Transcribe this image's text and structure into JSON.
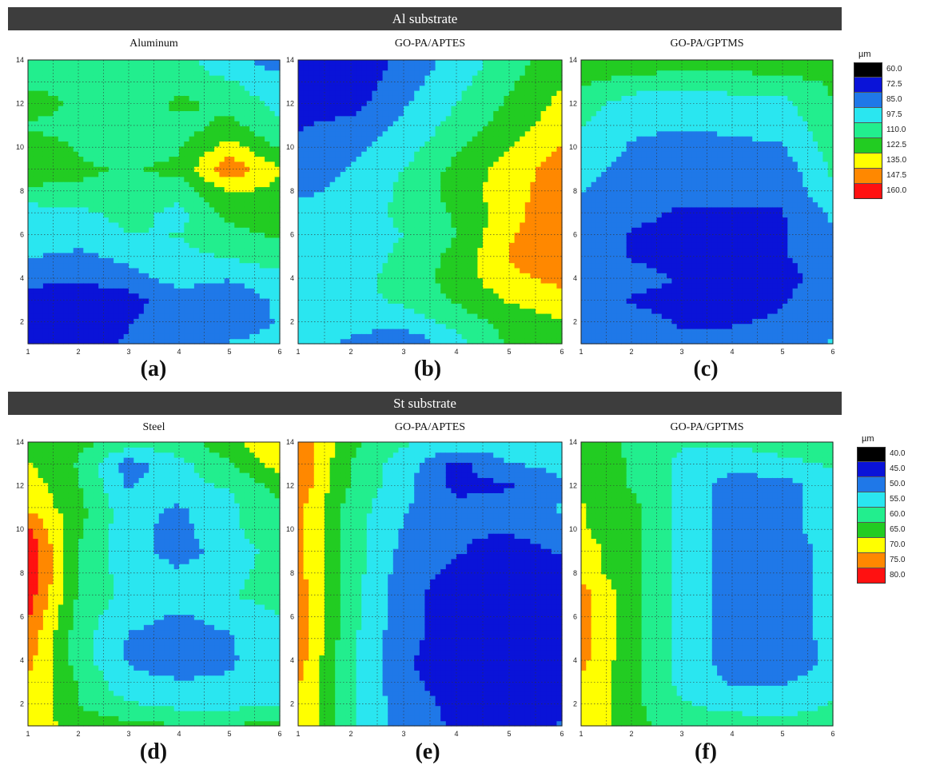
{
  "figure": {
    "banners": [
      "Al substrate",
      "St substrate"
    ],
    "legends": [
      {
        "unit": "µm",
        "levels": [
          "60.0",
          "72.5",
          "85.0",
          "97.5",
          "110.0",
          "122.5",
          "135.0",
          "147.5",
          "160.0"
        ],
        "colors": [
          "#000000",
          "#0a13d8",
          "#1f78e8",
          "#2ae6f0",
          "#22ee8e",
          "#22cc22",
          "#ffff00",
          "#ff8800",
          "#ff1111"
        ]
      },
      {
        "unit": "µm",
        "levels": [
          "40.0",
          "45.0",
          "50.0",
          "55.0",
          "60.0",
          "65.0",
          "70.0",
          "75.0",
          "80.0"
        ],
        "colors": [
          "#000000",
          "#0a13d8",
          "#1f78e8",
          "#2ae6f0",
          "#22ee8e",
          "#22cc22",
          "#ffff00",
          "#ff8800",
          "#ff1111"
        ]
      }
    ]
  },
  "chart_data": [
    {
      "type": "heatmap",
      "subplot_label": "(a)",
      "title": "Aluminum",
      "substrate": "Al substrate",
      "x": [
        1,
        2,
        3,
        4,
        5,
        6
      ],
      "y": [
        1,
        2,
        3,
        4,
        5,
        6,
        7,
        8,
        9,
        10,
        11,
        12,
        13,
        14
      ],
      "xlim": [
        1,
        6
      ],
      "ylim": [
        1,
        14
      ],
      "xticks": [
        "1",
        "2",
        "3",
        "4",
        "5",
        "6"
      ],
      "yticks": [
        "2",
        "4",
        "6",
        "8",
        "10",
        "12",
        "14"
      ],
      "unit": "µm",
      "levels": [
        60,
        72.5,
        85,
        97.5,
        110,
        122.5,
        135,
        147.5,
        160
      ],
      "z": [
        [
          70,
          75,
          80,
          88,
          92,
          95
        ],
        [
          68,
          70,
          78,
          90,
          85,
          92
        ],
        [
          75,
          68,
          72,
          88,
          80,
          95
        ],
        [
          82,
          80,
          88,
          95,
          92,
          100
        ],
        [
          92,
          88,
          94,
          100,
          105,
          110
        ],
        [
          96,
          98,
          103,
          104,
          112,
          118
        ],
        [
          98,
          100,
          108,
          100,
          120,
          125
        ],
        [
          112,
          115,
          112,
          108,
          130,
          125
        ],
        [
          126,
          118,
          115,
          120,
          150,
          130
        ],
        [
          128,
          115,
          108,
          115,
          135,
          115
        ],
        [
          112,
          110,
          115,
          110,
          120,
          105
        ],
        [
          128,
          112,
          105,
          120,
          112,
          100
        ],
        [
          112,
          110,
          112,
          110,
          105,
          95
        ],
        [
          108,
          108,
          105,
          108,
          95,
          85
        ]
      ]
    },
    {
      "type": "heatmap",
      "subplot_label": "(b)",
      "title": "GO-PA/APTES",
      "substrate": "Al substrate",
      "x": [
        1,
        2,
        3,
        4,
        5,
        6
      ],
      "y": [
        1,
        2,
        3,
        4,
        5,
        6,
        7,
        8,
        9,
        10,
        11,
        12,
        13,
        14
      ],
      "xlim": [
        1,
        6
      ],
      "ylim": [
        1,
        14
      ],
      "xticks": [
        "1",
        "2",
        "3",
        "4",
        "5",
        "6"
      ],
      "yticks": [
        "2",
        "4",
        "6",
        "8",
        "10",
        "12",
        "14"
      ],
      "unit": "µm",
      "levels": [
        60,
        72.5,
        85,
        97.5,
        110,
        122.5,
        135,
        147.5,
        160
      ],
      "z": [
        [
          94,
          90,
          80,
          98,
          118,
          125
        ],
        [
          94,
          94,
          96,
          108,
          122,
          128
        ],
        [
          96,
          100,
          106,
          118,
          130,
          135
        ],
        [
          95,
          100,
          108,
          122,
          138,
          145
        ],
        [
          92,
          98,
          106,
          120,
          142,
          150
        ],
        [
          94,
          98,
          104,
          116,
          140,
          150
        ],
        [
          96,
          98,
          106,
          118,
          136,
          152
        ],
        [
          88,
          96,
          106,
          122,
          136,
          150
        ],
        [
          82,
          92,
          104,
          120,
          134,
          148
        ],
        [
          80,
          88,
          98,
          114,
          128,
          142
        ],
        [
          78,
          82,
          94,
          108,
          122,
          136
        ],
        [
          76,
          74,
          90,
          104,
          118,
          132
        ],
        [
          74,
          70,
          86,
          100,
          114,
          128
        ],
        [
          74,
          70,
          82,
          96,
          110,
          124
        ]
      ]
    },
    {
      "type": "heatmap",
      "subplot_label": "(c)",
      "title": "GO-PA/GPTMS",
      "substrate": "Al substrate",
      "x": [
        1,
        2,
        3,
        4,
        5,
        6
      ],
      "y": [
        1,
        2,
        3,
        4,
        5,
        6,
        7,
        8,
        9,
        10,
        11,
        12,
        13,
        14
      ],
      "xlim": [
        1,
        6
      ],
      "ylim": [
        1,
        14
      ],
      "xticks": [
        "1",
        "2",
        "3",
        "4",
        "5",
        "6"
      ],
      "yticks": [
        "2",
        "4",
        "6",
        "8",
        "10",
        "12",
        "14"
      ],
      "unit": "µm",
      "levels": [
        60,
        72.5,
        85,
        97.5,
        110,
        122.5,
        135,
        147.5,
        160
      ],
      "z": [
        [
          85,
          85,
          80,
          82,
          88,
          92
        ],
        [
          86,
          82,
          78,
          78,
          80,
          90
        ],
        [
          86,
          78,
          76,
          76,
          78,
          86
        ],
        [
          88,
          82,
          78,
          78,
          76,
          82
        ],
        [
          84,
          78,
          76,
          76,
          78,
          84
        ],
        [
          86,
          78,
          78,
          78,
          78,
          88
        ],
        [
          88,
          80,
          78,
          78,
          78,
          94
        ],
        [
          92,
          84,
          80,
          80,
          82,
          102
        ],
        [
          96,
          86,
          80,
          82,
          84,
          106
        ],
        [
          100,
          90,
          86,
          88,
          90,
          110
        ],
        [
          104,
          94,
          92,
          94,
          96,
          112
        ],
        [
          110,
          98,
          96,
          98,
          100,
          116
        ],
        [
          118,
          110,
          108,
          110,
          110,
          118
        ],
        [
          128,
          128,
          124,
          124,
          126,
          130
        ]
      ]
    },
    {
      "type": "heatmap",
      "subplot_label": "(d)",
      "title": "Steel",
      "substrate": "St substrate",
      "x": [
        1,
        2,
        3,
        4,
        5,
        6
      ],
      "y": [
        1,
        2,
        3,
        4,
        5,
        6,
        7,
        8,
        9,
        10,
        11,
        12,
        13,
        14
      ],
      "xlim": [
        1,
        6
      ],
      "ylim": [
        1,
        14
      ],
      "xticks": [
        "1",
        "2",
        "3",
        "4",
        "5",
        "6"
      ],
      "yticks": [
        "2",
        "4",
        "6",
        "8",
        "10",
        "12",
        "14"
      ],
      "unit": "µm",
      "levels": [
        40,
        45,
        50,
        55,
        60,
        65,
        70,
        75,
        80
      ],
      "z": [
        [
          70,
          66,
          64,
          63,
          63,
          64
        ],
        [
          72,
          62,
          58,
          56,
          56,
          57
        ],
        [
          72,
          62,
          54,
          53,
          53,
          55
        ],
        [
          74,
          60,
          52,
          50,
          52,
          55
        ],
        [
          76,
          60,
          52,
          50,
          52,
          56
        ],
        [
          78,
          60,
          54,
          52,
          54,
          57
        ],
        [
          80,
          62,
          56,
          55,
          57,
          60
        ],
        [
          82,
          62,
          55,
          53,
          56,
          60
        ],
        [
          82,
          62,
          54,
          51,
          54,
          60
        ],
        [
          78,
          64,
          54,
          51,
          56,
          62
        ],
        [
          72,
          64,
          54,
          52,
          56,
          62
        ],
        [
          70,
          63,
          52,
          56,
          58,
          64
        ],
        [
          68,
          62,
          50,
          56,
          62,
          70
        ],
        [
          66,
          64,
          60,
          60,
          66,
          72
        ]
      ]
    },
    {
      "type": "heatmap",
      "subplot_label": "(e)",
      "title": "GO-PA/APTES",
      "substrate": "St substrate",
      "x": [
        1,
        2,
        3,
        4,
        5,
        6
      ],
      "y": [
        1,
        2,
        3,
        4,
        5,
        6,
        7,
        8,
        9,
        10,
        11,
        12,
        13,
        14
      ],
      "xlim": [
        1,
        6
      ],
      "ylim": [
        1,
        14
      ],
      "xticks": [
        "1",
        "2",
        "3",
        "4",
        "5",
        "6"
      ],
      "yticks": [
        "2",
        "4",
        "6",
        "8",
        "10",
        "12",
        "14"
      ],
      "unit": "µm",
      "levels": [
        40,
        45,
        50,
        55,
        60,
        65,
        70,
        75,
        80
      ],
      "z": [
        [
          73,
          58,
          50,
          47,
          46,
          48
        ],
        [
          73,
          58,
          50,
          46,
          44,
          45
        ],
        [
          73,
          58,
          49,
          45,
          44,
          46
        ],
        [
          75,
          58,
          48,
          45,
          44,
          45
        ],
        [
          76,
          58,
          49,
          45,
          44,
          44
        ],
        [
          76,
          60,
          49,
          45,
          44,
          44
        ],
        [
          76,
          60,
          49,
          45,
          44,
          44
        ],
        [
          74,
          60,
          50,
          46,
          44,
          45
        ],
        [
          74,
          60,
          51,
          48,
          45,
          48
        ],
        [
          74,
          60,
          52,
          48,
          48,
          51
        ],
        [
          74,
          60,
          53,
          49,
          50,
          53
        ],
        [
          76,
          62,
          54,
          46,
          47,
          52
        ],
        [
          77,
          62,
          55,
          46,
          52,
          54
        ],
        [
          76,
          64,
          58,
          56,
          56,
          58
        ]
      ]
    },
    {
      "type": "heatmap",
      "subplot_label": "(f)",
      "title": "GO-PA/GPTMS",
      "substrate": "St substrate",
      "x": [
        1,
        2,
        3,
        4,
        5,
        6
      ],
      "y": [
        1,
        2,
        3,
        4,
        5,
        6,
        7,
        8,
        9,
        10,
        11,
        12,
        13,
        14
      ],
      "xlim": [
        1,
        6
      ],
      "ylim": [
        1,
        14
      ],
      "xticks": [
        "1",
        "2",
        "3",
        "4",
        "5",
        "6"
      ],
      "yticks": [
        "2",
        "4",
        "6",
        "8",
        "10",
        "12",
        "14"
      ],
      "unit": "µm",
      "levels": [
        40,
        45,
        50,
        55,
        60,
        65,
        70,
        75,
        80
      ],
      "z": [
        [
          72,
          64,
          60,
          60,
          60,
          62
        ],
        [
          72,
          64,
          58,
          56,
          54,
          58
        ],
        [
          72,
          64,
          56,
          52,
          52,
          56
        ],
        [
          74,
          64,
          56,
          50,
          48,
          54
        ],
        [
          74,
          64,
          56,
          50,
          50,
          54
        ],
        [
          74,
          64,
          56,
          50,
          50,
          54
        ],
        [
          75,
          64,
          56,
          50,
          50,
          54
        ],
        [
          70,
          64,
          56,
          50,
          50,
          54
        ],
        [
          70,
          64,
          56,
          50,
          50,
          54
        ],
        [
          68,
          64,
          56,
          50,
          50,
          56
        ],
        [
          68,
          64,
          56,
          50,
          50,
          56
        ],
        [
          66,
          62,
          56,
          50,
          50,
          56
        ],
        [
          66,
          62,
          56,
          54,
          56,
          58
        ],
        [
          64,
          62,
          58,
          58,
          60,
          62
        ]
      ]
    }
  ]
}
